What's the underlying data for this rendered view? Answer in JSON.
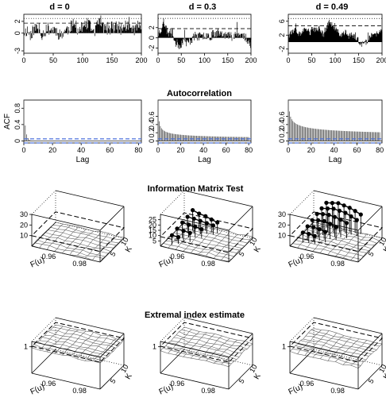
{
  "figure": {
    "row_titles": {
      "acf": "Autocorrelation",
      "imt": "Information Matrix Test",
      "ei": "Extremal index estimate"
    }
  },
  "chart_data": [
    {
      "id": "ts-d0",
      "type": "bar",
      "title": "d = 0",
      "xlim": [
        0,
        200
      ],
      "ylim": [
        -3.4,
        3.2
      ],
      "xticks": [
        0,
        50,
        100,
        150,
        200
      ],
      "yticks": [
        -3,
        0,
        2
      ],
      "threshold": 1.7,
      "dotted_line": 2.5,
      "profile": [
        0.2,
        0.5,
        -0.4,
        0.6,
        1.0,
        0.3,
        -0.2,
        0.4,
        0.8,
        0.6,
        0.7,
        0.3,
        -0.5,
        0.2,
        0.5,
        0.9,
        1.4,
        1.2,
        0.6,
        0.8,
        1.1,
        1.6,
        1.0,
        0.4,
        0.7,
        2.6,
        1.3,
        0.5,
        0.9,
        1.2,
        0.8,
        1.1,
        0.7,
        1.0,
        1.4,
        0.9,
        0.6,
        0.8,
        1.2,
        1.0
      ],
      "spread": 1.1,
      "seed": 11
    },
    {
      "id": "ts-d03",
      "type": "bar",
      "title": "d = 0.3",
      "xlim": [
        0,
        200
      ],
      "ylim": [
        -3.0,
        4.6
      ],
      "xticks": [
        0,
        50,
        100,
        150,
        200
      ],
      "yticks": [
        -2,
        0,
        2
      ],
      "threshold": 1.8,
      "dotted_line": 3.8,
      "profile": [
        0.8,
        1.6,
        3.2,
        2.2,
        0.8,
        1.1,
        0.6,
        -0.9,
        -1.2,
        -1.5,
        -0.8,
        -0.5,
        -1.0,
        -0.7,
        -0.2,
        0.2,
        0.4,
        0.3,
        0.1,
        0.4,
        0.6,
        0.5,
        0.3,
        0.7,
        0.9,
        1.2,
        0.8,
        1.1,
        0.6,
        0.4,
        0.5,
        0.3,
        0.7,
        0.8,
        0.5,
        0.6,
        0.2,
        0.0,
        -1.2,
        -0.4
      ],
      "spread": 0.9,
      "seed": 23
    },
    {
      "id": "ts-d049",
      "type": "bar",
      "title": "d = 0.49",
      "xlim": [
        0,
        200
      ],
      "ylim": [
        -3.2,
        8.0
      ],
      "xticks": [
        0,
        50,
        100,
        150,
        200
      ],
      "yticks": [
        -2,
        2,
        6
      ],
      "threshold": 4.7,
      "dotted_line": 6.8,
      "profile": [
        2.6,
        3.0,
        2.8,
        3.4,
        2.5,
        2.0,
        3.6,
        3.0,
        3.4,
        2.7,
        4.2,
        3.2,
        3.8,
        4.0,
        2.5,
        2.3,
        4.6,
        5.8,
        5.0,
        4.0,
        3.2,
        2.6,
        2.0,
        2.4,
        2.8,
        1.8,
        2.0,
        1.6,
        1.4,
        0.5,
        -0.8,
        -0.6,
        -0.2,
        0.3,
        1.5,
        2.0,
        1.8,
        2.4,
        3.0,
        2.8
      ],
      "spread": 0.9,
      "seed": 37
    },
    {
      "id": "acf-d0",
      "type": "bar",
      "ylabel": "ACF",
      "xlabel": "Lag",
      "xlim": [
        0,
        82
      ],
      "ylim": [
        -0.05,
        1.0
      ],
      "xticks": [
        0,
        20,
        40,
        60,
        80
      ],
      "yticks": [
        0.0,
        0.4,
        0.8
      ],
      "conf_band": 0.05,
      "max_lag": 80,
      "acf_model": {
        "kind": "ar",
        "lag0": 1.0,
        "rho": 0.42
      }
    },
    {
      "id": "acf-d03",
      "type": "bar",
      "xlabel": "Lag",
      "xlim": [
        0,
        82
      ],
      "ylim": [
        -0.05,
        1.0
      ],
      "xticks": [
        0,
        20,
        40,
        60,
        80
      ],
      "yticks": [
        0.0,
        0.2,
        0.4,
        0.6
      ],
      "conf_band": 0.05,
      "max_lag": 80,
      "acf_model": {
        "kind": "power",
        "lag0": 1.0,
        "a": 0.46,
        "b": 0.42,
        "floor": 0.02
      }
    },
    {
      "id": "acf-d049",
      "type": "bar",
      "xlabel": "Lag",
      "xlim": [
        0,
        82
      ],
      "ylim": [
        -0.05,
        1.0
      ],
      "xticks": [
        0,
        20,
        40,
        60,
        80
      ],
      "yticks": [
        0.0,
        0.2,
        0.4,
        0.6
      ],
      "conf_band": 0.05,
      "max_lag": 80,
      "acf_model": {
        "kind": "power",
        "lag0": 1.0,
        "a": 0.72,
        "b": 0.28,
        "floor": 0.0
      }
    },
    {
      "id": "imt-d0",
      "type": "heatmap",
      "x_label": "F(u)",
      "x_ticks": [
        0.96,
        0.98
      ],
      "y_label": "K",
      "y_ticks": [
        5,
        10
      ],
      "z_ticks": [
        10,
        20,
        30
      ],
      "zlim": [
        0,
        30
      ],
      "surface_level": 0.02,
      "threshold_level": 0.33,
      "points": []
    },
    {
      "id": "imt-d03",
      "type": "heatmap",
      "x_ticks": [
        0.96,
        0.98
      ],
      "y_ticks": [
        5,
        10
      ],
      "x_label": "F(u)",
      "y_label": "K",
      "z_ticks": [
        5,
        10,
        15,
        20,
        25
      ],
      "zlim": [
        0,
        30
      ],
      "surface_level": 0.02,
      "threshold_level": 0.3,
      "points": [
        [
          0.2,
          0.78,
          0.65
        ],
        [
          0.28,
          0.82,
          0.55
        ],
        [
          0.36,
          0.86,
          0.48
        ],
        [
          0.44,
          0.88,
          0.4
        ],
        [
          0.52,
          0.9,
          0.33
        ],
        [
          0.18,
          0.62,
          0.55
        ],
        [
          0.26,
          0.66,
          0.5
        ],
        [
          0.34,
          0.7,
          0.44
        ],
        [
          0.42,
          0.74,
          0.38
        ],
        [
          0.5,
          0.78,
          0.32
        ],
        [
          0.16,
          0.46,
          0.48
        ],
        [
          0.24,
          0.5,
          0.42
        ],
        [
          0.32,
          0.54,
          0.37
        ],
        [
          0.4,
          0.58,
          0.3
        ],
        [
          0.14,
          0.3,
          0.4
        ],
        [
          0.22,
          0.34,
          0.34
        ],
        [
          0.3,
          0.38,
          0.28
        ],
        [
          0.12,
          0.14,
          0.3
        ],
        [
          0.2,
          0.18,
          0.25
        ]
      ]
    },
    {
      "id": "imt-d049",
      "type": "heatmap",
      "x_ticks": [
        0.96,
        0.98
      ],
      "y_ticks": [
        5,
        10
      ],
      "x_label": "F(u)",
      "y_label": "K",
      "z_ticks": [
        10,
        20,
        30
      ],
      "zlim": [
        0,
        30
      ],
      "surface_level": 0.02,
      "threshold_level": 0.33,
      "points": [
        [
          0.22,
          0.9,
          0.8
        ],
        [
          0.3,
          0.92,
          0.82
        ],
        [
          0.38,
          0.94,
          0.84
        ],
        [
          0.46,
          0.95,
          0.8
        ],
        [
          0.54,
          0.96,
          0.76
        ],
        [
          0.62,
          0.96,
          0.7
        ],
        [
          0.7,
          0.97,
          0.62
        ],
        [
          0.2,
          0.76,
          0.72
        ],
        [
          0.28,
          0.78,
          0.74
        ],
        [
          0.36,
          0.8,
          0.76
        ],
        [
          0.44,
          0.82,
          0.72
        ],
        [
          0.52,
          0.84,
          0.68
        ],
        [
          0.6,
          0.85,
          0.6
        ],
        [
          0.68,
          0.86,
          0.52
        ],
        [
          0.18,
          0.62,
          0.64
        ],
        [
          0.26,
          0.64,
          0.66
        ],
        [
          0.34,
          0.66,
          0.66
        ],
        [
          0.42,
          0.68,
          0.62
        ],
        [
          0.5,
          0.7,
          0.56
        ],
        [
          0.58,
          0.72,
          0.48
        ],
        [
          0.16,
          0.48,
          0.54
        ],
        [
          0.24,
          0.5,
          0.56
        ],
        [
          0.32,
          0.52,
          0.56
        ],
        [
          0.4,
          0.54,
          0.5
        ],
        [
          0.48,
          0.56,
          0.42
        ],
        [
          0.14,
          0.34,
          0.44
        ],
        [
          0.22,
          0.36,
          0.44
        ],
        [
          0.3,
          0.38,
          0.4
        ],
        [
          0.38,
          0.4,
          0.34
        ],
        [
          0.12,
          0.2,
          0.34
        ],
        [
          0.2,
          0.22,
          0.32
        ],
        [
          0.28,
          0.24,
          0.28
        ]
      ]
    },
    {
      "id": "ei-d0",
      "type": "heatmap",
      "x_label": "F(u)",
      "x_ticks": [
        0.96,
        0.98
      ],
      "y_label": "K",
      "y_ticks": [
        5,
        10
      ],
      "z_ticks": [
        1
      ],
      "zlim": [
        0,
        1.2
      ],
      "surface_level": 0.8,
      "threshold_level": 0.85
    },
    {
      "id": "ei-d03",
      "type": "heatmap",
      "x_ticks": [
        0.96,
        0.98
      ],
      "y_ticks": [
        5,
        10
      ],
      "x_label": "F(u)",
      "y_label": "K",
      "z_ticks": [
        1
      ],
      "zlim": [
        0,
        1.2
      ],
      "surface_level": 0.7,
      "threshold_level": 0.85
    },
    {
      "id": "ei-d049",
      "type": "heatmap",
      "x_ticks": [
        0.96,
        0.98
      ],
      "y_ticks": [
        5,
        10
      ],
      "x_label": "F(u)",
      "y_label": "K",
      "z_ticks": [
        1
      ],
      "zlim": [
        0,
        1.2
      ],
      "surface_level": 0.68,
      "threshold_level": 0.85
    }
  ]
}
